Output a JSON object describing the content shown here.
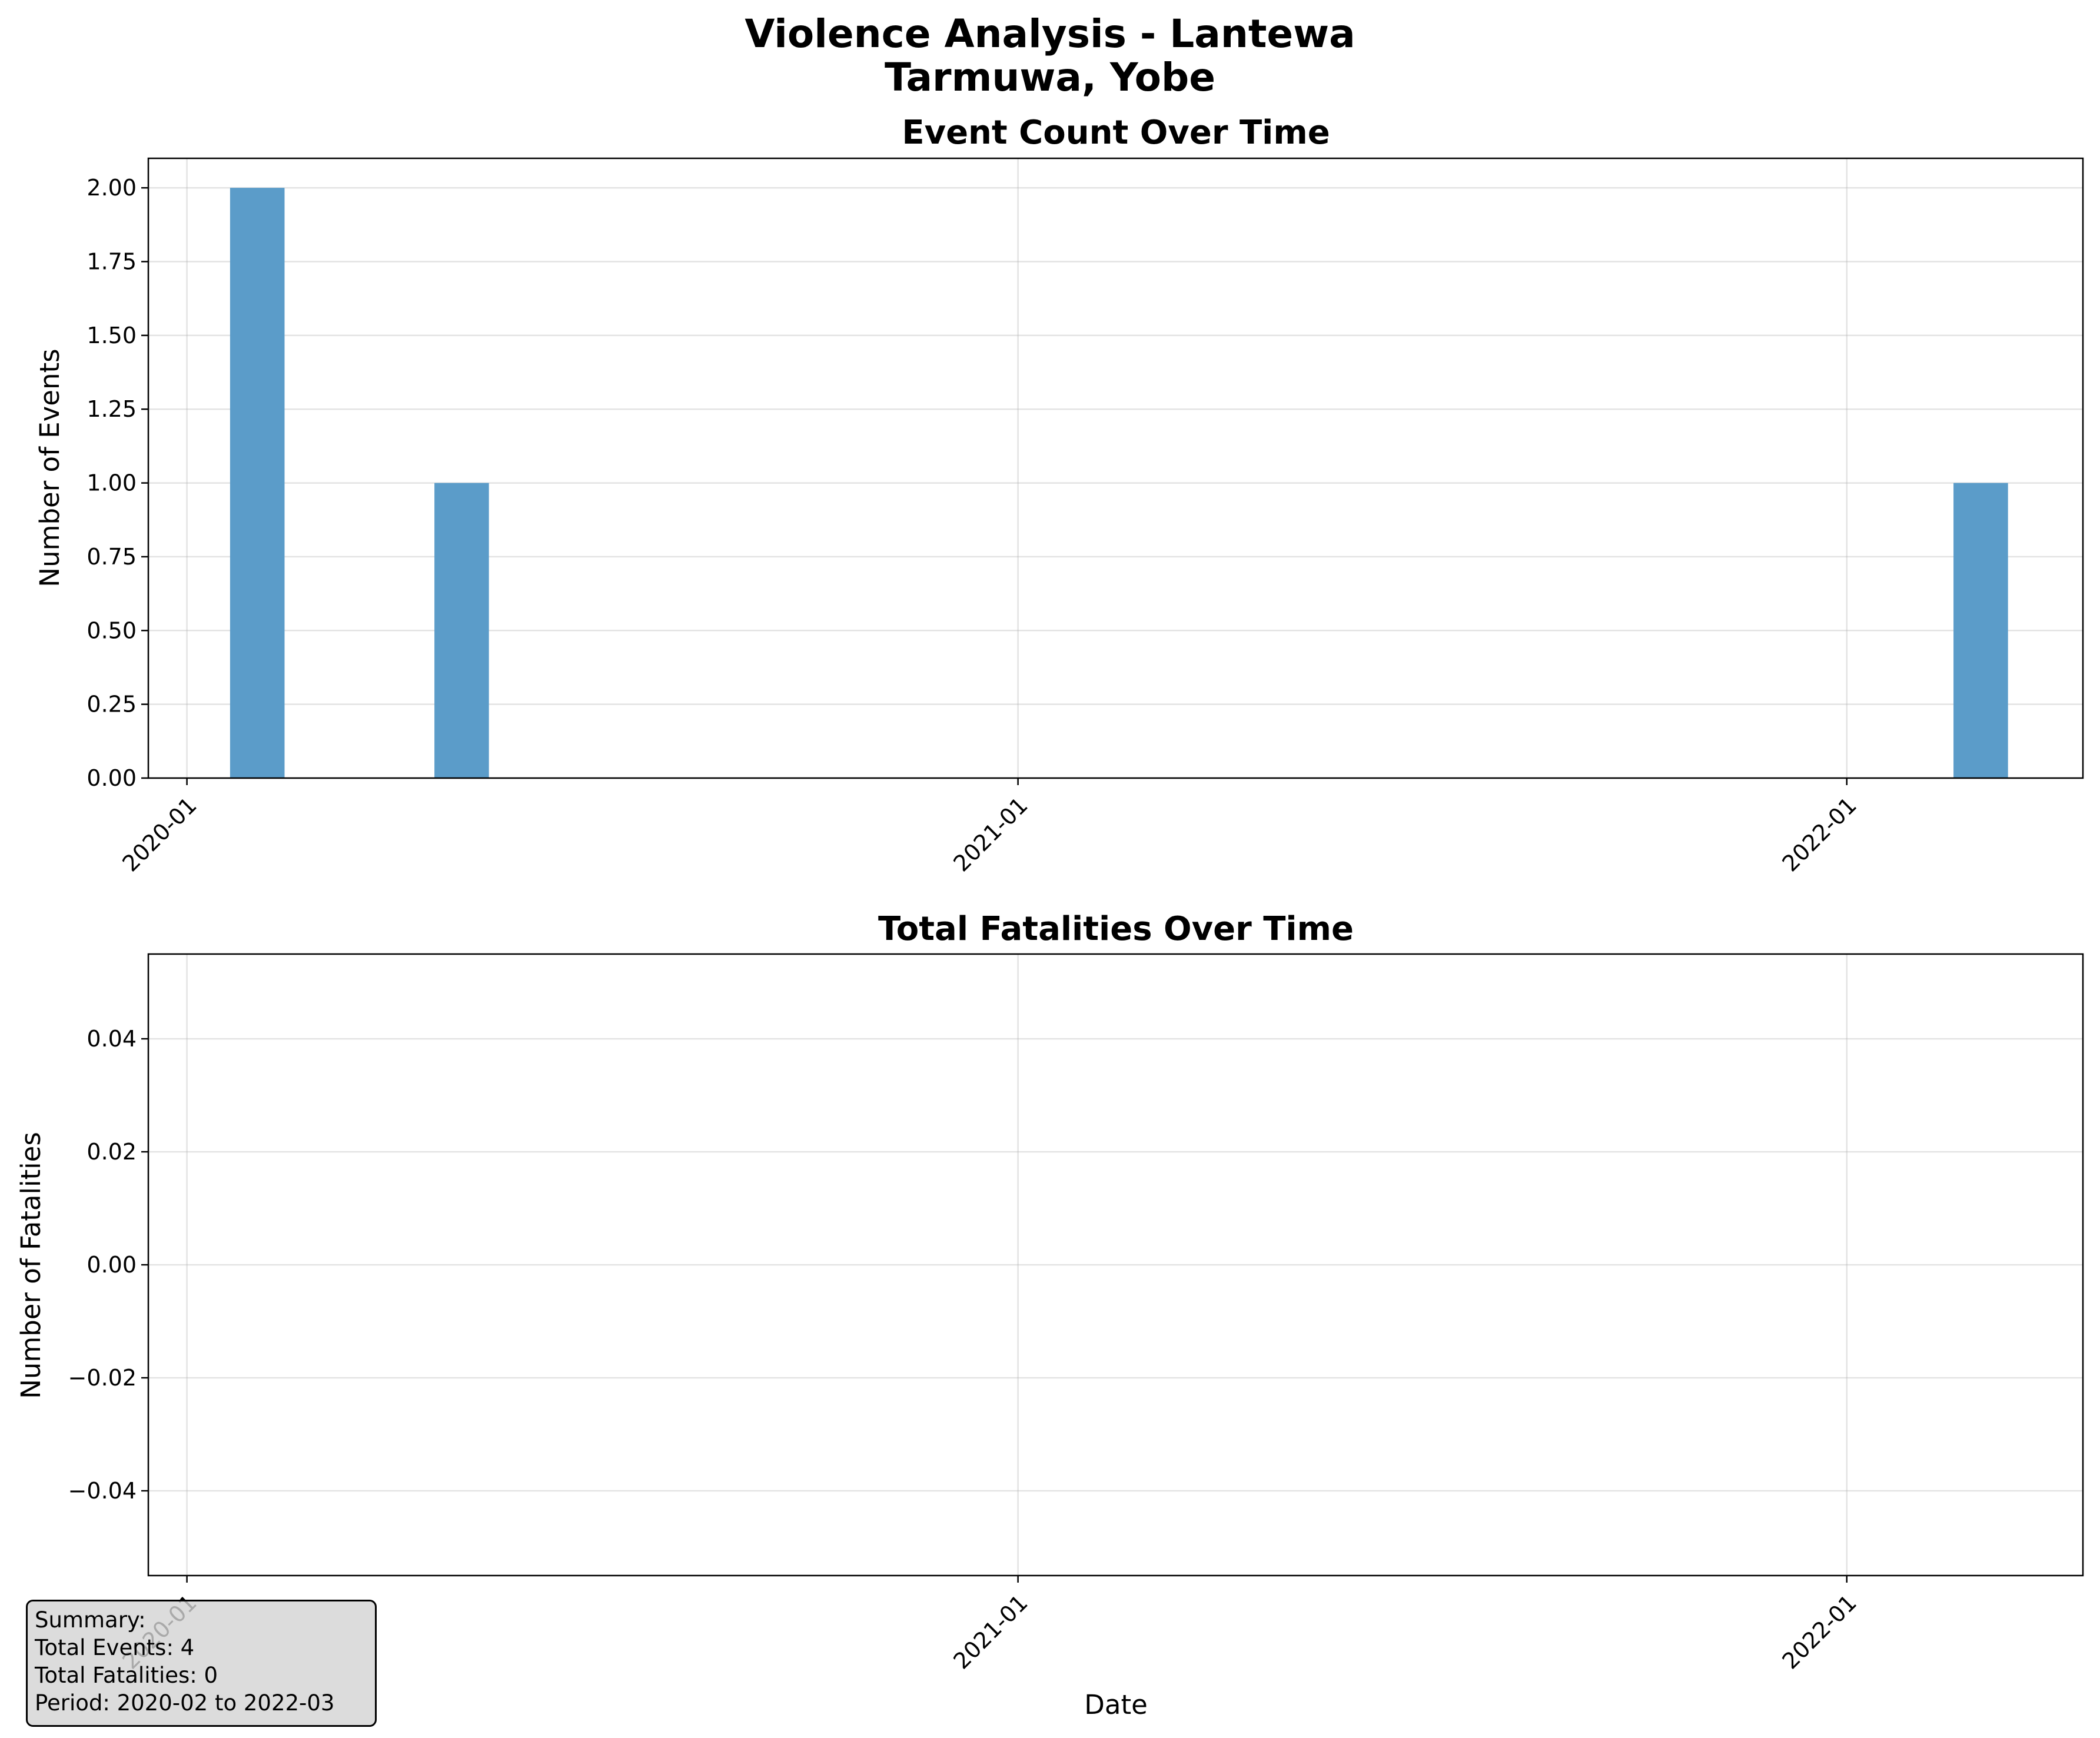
{
  "figure": {
    "title_line1": "Violence Analysis - Lantewa",
    "title_line2": "Tarmuwa, Yobe"
  },
  "chart_data": [
    {
      "type": "bar",
      "title": "Event Count Over Time",
      "xlabel": "",
      "ylabel": "Number of Events",
      "x_type": "date",
      "x": [
        "2020-02",
        "2020-05",
        "2022-03"
      ],
      "values": [
        2,
        1,
        1
      ],
      "xlim": [
        "2019-12-15",
        "2022-04-15"
      ],
      "xticks": [
        "2020-01",
        "2021-01",
        "2022-01"
      ],
      "ylim": [
        0,
        2.1
      ],
      "yticks": [
        "0.00",
        "0.25",
        "0.50",
        "0.75",
        "1.00",
        "1.25",
        "1.50",
        "1.75",
        "2.00"
      ],
      "bar_color": "#5b9cc9",
      "grid": true
    },
    {
      "type": "line",
      "title": "Total Fatalities Over Time",
      "xlabel": "Date",
      "ylabel": "Number of Fatalities",
      "x_type": "date",
      "x": [],
      "values": [],
      "xlim": [
        "2019-12-15",
        "2022-04-15"
      ],
      "xticks": [
        "2020-01",
        "2021-01",
        "2022-01"
      ],
      "ylim": [
        -0.055,
        0.055
      ],
      "yticks": [
        "0.04",
        "0.02",
        "0.00",
        "−0.02",
        "−0.04"
      ],
      "grid": true
    }
  ],
  "summary": {
    "heading": "Summary:",
    "total_events": "Total Events: 4",
    "total_fatalities": "Total Fatalities: 0",
    "period": "Period: 2020-02 to 2022-03"
  }
}
